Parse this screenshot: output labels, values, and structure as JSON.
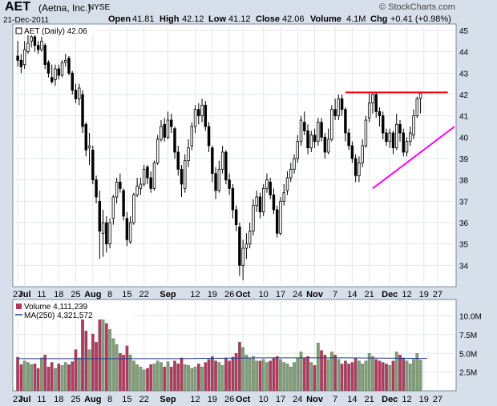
{
  "header": {
    "symbol": "AET",
    "company": "(Aetna, Inc.)",
    "exchange": "NYSE",
    "date": "21-Dec-2011",
    "open_label": "Open",
    "open": "41.81",
    "high_label": "High",
    "high": "42.12",
    "low_label": "Low",
    "low": "41.12",
    "close_label": "Close",
    "close": "42.06",
    "volume_label": "Volume",
    "volume": "4.1M",
    "chg_label": "Chg",
    "chg": "+0.41 (+0.98%)",
    "brand": "© StockCharts.com"
  },
  "price_panel": {
    "legend": "AET (Daily) 42.06"
  },
  "volume_panel": {
    "legend_volume": "Volume 4,111,239",
    "legend_ma": "MA(250) 4,321,572"
  },
  "colors": {
    "up": "#7f9f76",
    "down": "#b3385e",
    "candle": "#000000",
    "resistance": "#ff0000",
    "support": "#ff00ff",
    "ma": "#1e3c8c",
    "frame": "#d6dfea",
    "plot_bg": "#ffffff"
  },
  "chart_data": {
    "type": "candlestick",
    "symbol": "AET",
    "period": "Daily",
    "ylim": [
      33,
      45.3
    ],
    "yticks": [
      34,
      35,
      36,
      37,
      38,
      39,
      40,
      41,
      42,
      43,
      44,
      45
    ],
    "volume_ylim": [
      0,
      12.2
    ],
    "volume_ticks": [
      "2.5M",
      "5.0M",
      "7.5M",
      "10.0M"
    ],
    "volume_tick_values": [
      2.5,
      5.0,
      7.5,
      10.0
    ],
    "xtick_labels": [
      {
        "i": 0,
        "label": "27"
      },
      {
        "i": 2,
        "label": "Jul"
      },
      {
        "i": 7,
        "label": "11"
      },
      {
        "i": 12,
        "label": "18"
      },
      {
        "i": 17,
        "label": "25"
      },
      {
        "i": 22,
        "label": "Aug"
      },
      {
        "i": 27,
        "label": "8"
      },
      {
        "i": 32,
        "label": "15"
      },
      {
        "i": 37,
        "label": "22"
      },
      {
        "i": 44,
        "label": "Sep"
      },
      {
        "i": 52,
        "label": "12"
      },
      {
        "i": 57,
        "label": "19"
      },
      {
        "i": 62,
        "label": "26"
      },
      {
        "i": 66,
        "label": "Oct"
      },
      {
        "i": 72,
        "label": "10"
      },
      {
        "i": 77,
        "label": "17"
      },
      {
        "i": 82,
        "label": "24"
      },
      {
        "i": 87,
        "label": "Nov"
      },
      {
        "i": 93,
        "label": "7"
      },
      {
        "i": 98,
        "label": "14"
      },
      {
        "i": 103,
        "label": "21"
      },
      {
        "i": 109,
        "label": "Dec"
      },
      {
        "i": 114,
        "label": "12"
      },
      {
        "i": 119,
        "label": "19"
      },
      {
        "i": 123,
        "label": "27"
      }
    ],
    "candles": [
      [
        43.8,
        43.6,
        44.5,
        43.3,
        4.5
      ],
      [
        43.6,
        43.3,
        43.9,
        43.0,
        3.5
      ],
      [
        43.4,
        44.1,
        44.5,
        43.2,
        4.0
      ],
      [
        44.0,
        44.4,
        44.9,
        43.9,
        3.8
      ],
      [
        44.5,
        44.7,
        44.8,
        44.2,
        3.5
      ],
      [
        44.7,
        44.3,
        44.8,
        44.0,
        3.6
      ],
      [
        44.3,
        44.1,
        44.5,
        43.9,
        3.0
      ],
      [
        44.1,
        44.5,
        44.7,
        44.0,
        4.4
      ],
      [
        44.3,
        43.4,
        44.4,
        43.2,
        4.8
      ],
      [
        43.5,
        43.0,
        43.6,
        42.8,
        3.2
      ],
      [
        42.8,
        42.6,
        43.4,
        42.5,
        3.8
      ],
      [
        42.7,
        43.2,
        43.4,
        42.4,
        3.0
      ],
      [
        43.2,
        42.9,
        43.4,
        42.7,
        3.6
      ],
      [
        42.9,
        43.5,
        43.6,
        42.8,
        3.4
      ],
      [
        43.5,
        43.6,
        43.9,
        43.3,
        3.8
      ],
      [
        43.7,
        43.0,
        43.8,
        42.9,
        3.5
      ],
      [
        43.0,
        42.2,
        43.1,
        42.0,
        3.9
      ],
      [
        42.2,
        41.8,
        42.5,
        41.6,
        5.5
      ],
      [
        41.8,
        42.3,
        42.5,
        41.5,
        4.4
      ],
      [
        42.0,
        40.5,
        42.2,
        40.2,
        9.6
      ],
      [
        40.6,
        39.4,
        40.7,
        39.1,
        8.0
      ],
      [
        39.5,
        39.6,
        40.2,
        38.7,
        5.5
      ],
      [
        39.4,
        38.0,
        39.6,
        37.8,
        7.6
      ],
      [
        38.0,
        37.2,
        38.2,
        36.9,
        6.5
      ],
      [
        37.0,
        35.6,
        37.5,
        34.3,
        11.8
      ],
      [
        35.5,
        36.0,
        36.6,
        34.4,
        10.0
      ],
      [
        36.0,
        35.0,
        36.3,
        34.6,
        9.0
      ],
      [
        35.0,
        36.0,
        36.2,
        34.8,
        8.2
      ],
      [
        36.2,
        37.2,
        37.3,
        35.9,
        7.0
      ],
      [
        37.2,
        37.9,
        38.1,
        36.9,
        6.2
      ],
      [
        37.9,
        37.6,
        38.3,
        37.4,
        5.0
      ],
      [
        37.5,
        36.3,
        37.6,
        36.1,
        4.8
      ],
      [
        36.2,
        35.2,
        36.5,
        34.9,
        6.0
      ],
      [
        35.1,
        36.0,
        36.3,
        35.0,
        4.8
      ],
      [
        36.0,
        37.3,
        37.4,
        35.9,
        4.0
      ],
      [
        37.3,
        37.7,
        38.1,
        37.2,
        3.5
      ],
      [
        37.6,
        37.8,
        38.1,
        37.3,
        3.2
      ],
      [
        37.8,
        38.5,
        38.7,
        37.7,
        2.8
      ],
      [
        38.6,
        38.1,
        38.7,
        37.8,
        3.0
      ],
      [
        38.1,
        37.6,
        38.4,
        37.4,
        3.5
      ],
      [
        37.6,
        38.8,
        38.9,
        37.5,
        3.6
      ],
      [
        38.8,
        39.9,
        40.1,
        38.7,
        4.0
      ],
      [
        39.9,
        40.5,
        40.8,
        39.8,
        3.8
      ],
      [
        40.6,
        40.0,
        40.9,
        39.8,
        3.2
      ],
      [
        40.0,
        40.8,
        41.2,
        39.9,
        3.9
      ],
      [
        40.8,
        40.5,
        41.1,
        40.2,
        3.2
      ],
      [
        40.4,
        39.3,
        40.5,
        39.0,
        4.0
      ],
      [
        39.3,
        38.5,
        39.6,
        38.2,
        3.6
      ],
      [
        38.5,
        37.8,
        38.7,
        37.2,
        4.4
      ],
      [
        37.6,
        38.9,
        39.2,
        37.4,
        3.5
      ],
      [
        38.9,
        39.5,
        39.9,
        38.6,
        3.4
      ],
      [
        39.6,
        40.5,
        40.7,
        39.4,
        3.0
      ],
      [
        40.5,
        41.3,
        41.5,
        40.2,
        3.2
      ],
      [
        41.3,
        41.0,
        41.6,
        40.6,
        3.6
      ],
      [
        41.0,
        41.5,
        41.8,
        40.7,
        3.2
      ],
      [
        41.5,
        40.5,
        41.7,
        40.3,
        3.8
      ],
      [
        40.5,
        39.6,
        40.7,
        39.3,
        4.2
      ],
      [
        39.5,
        38.3,
        39.6,
        37.9,
        4.6
      ],
      [
        38.3,
        37.5,
        38.6,
        37.1,
        4.0
      ],
      [
        37.5,
        38.5,
        38.9,
        37.4,
        3.8
      ],
      [
        38.5,
        39.3,
        39.6,
        38.3,
        3.4
      ],
      [
        39.3,
        38.0,
        39.4,
        37.8,
        4.4
      ],
      [
        38.0,
        37.6,
        38.3,
        37.3,
        4.0
      ],
      [
        37.6,
        36.6,
        37.8,
        36.2,
        4.5
      ],
      [
        36.6,
        35.9,
        36.8,
        35.6,
        5.0
      ],
      [
        35.8,
        34.0,
        36.0,
        33.5,
        6.5
      ],
      [
        34.0,
        34.8,
        35.2,
        33.3,
        5.8
      ],
      [
        34.8,
        35.0,
        35.5,
        34.3,
        4.8
      ],
      [
        35.0,
        35.6,
        36.0,
        34.8,
        4.4
      ],
      [
        35.6,
        36.8,
        37.1,
        35.4,
        4.6
      ],
      [
        36.8,
        37.2,
        37.5,
        36.5,
        4.0
      ],
      [
        37.2,
        36.5,
        37.4,
        36.2,
        4.0
      ],
      [
        36.5,
        37.6,
        37.8,
        36.3,
        4.2
      ],
      [
        37.6,
        38.0,
        38.3,
        37.4,
        3.8
      ],
      [
        37.9,
        37.3,
        38.1,
        37.1,
        4.0
      ],
      [
        37.3,
        36.6,
        37.6,
        36.4,
        4.4
      ],
      [
        36.6,
        35.5,
        36.8,
        35.3,
        4.6
      ],
      [
        35.5,
        37.0,
        37.2,
        35.4,
        4.2
      ],
      [
        37.0,
        37.4,
        37.8,
        36.8,
        3.8
      ],
      [
        37.5,
        38.1,
        38.4,
        37.3,
        3.6
      ],
      [
        38.1,
        38.5,
        38.8,
        37.9,
        3.2
      ],
      [
        38.5,
        39.0,
        39.2,
        38.3,
        3.8
      ],
      [
        39.0,
        39.8,
        40.1,
        38.8,
        4.4
      ],
      [
        39.8,
        40.8,
        41.0,
        39.6,
        5.2
      ],
      [
        40.7,
        40.3,
        41.2,
        40.1,
        4.4
      ],
      [
        40.3,
        39.5,
        40.6,
        39.2,
        4.6
      ],
      [
        39.5,
        40.1,
        40.3,
        39.3,
        3.8
      ],
      [
        40.1,
        39.8,
        40.4,
        39.5,
        3.4
      ],
      [
        39.8,
        40.7,
        40.9,
        39.6,
        6.4
      ],
      [
        40.7,
        40.0,
        40.9,
        39.8,
        5.4
      ],
      [
        40.0,
        39.3,
        40.2,
        39.0,
        4.8
      ],
      [
        39.3,
        39.9,
        40.4,
        39.2,
        4.2
      ],
      [
        39.9,
        41.3,
        41.5,
        39.8,
        5.2
      ],
      [
        41.3,
        41.0,
        41.8,
        40.8,
        4.8
      ],
      [
        41.0,
        41.8,
        42.0,
        40.8,
        4.2
      ],
      [
        41.8,
        41.3,
        42.0,
        41.0,
        3.6
      ],
      [
        41.3,
        40.2,
        41.4,
        39.8,
        4.0
      ],
      [
        40.2,
        39.6,
        40.4,
        39.4,
        3.6
      ],
      [
        39.6,
        39.0,
        39.8,
        38.8,
        3.8
      ],
      [
        39.0,
        38.2,
        39.2,
        37.9,
        4.4
      ],
      [
        38.2,
        38.8,
        39.1,
        37.9,
        4.0
      ],
      [
        38.8,
        39.6,
        39.9,
        38.6,
        3.6
      ],
      [
        39.6,
        40.8,
        41.0,
        39.5,
        4.0
      ],
      [
        40.9,
        41.6,
        42.1,
        40.7,
        5.0
      ],
      [
        41.6,
        42.0,
        42.1,
        41.1,
        4.6
      ],
      [
        42.0,
        41.2,
        42.1,
        40.9,
        4.2
      ],
      [
        41.2,
        41.0,
        41.4,
        40.5,
        4.0
      ],
      [
        41.0,
        40.2,
        41.2,
        39.9,
        3.8
      ],
      [
        40.2,
        39.8,
        40.4,
        39.6,
        3.6
      ],
      [
        39.8,
        40.2,
        40.4,
        39.5,
        3.4
      ],
      [
        40.2,
        39.5,
        40.3,
        39.2,
        4.0
      ],
      [
        39.5,
        40.6,
        41.1,
        39.4,
        5.2
      ],
      [
        40.6,
        40.2,
        40.8,
        39.8,
        4.8
      ],
      [
        40.2,
        39.3,
        40.4,
        39.1,
        4.4
      ],
      [
        39.3,
        39.8,
        40.0,
        39.1,
        4.0
      ],
      [
        39.8,
        40.2,
        40.5,
        39.6,
        3.6
      ],
      [
        40.1,
        41.0,
        41.3,
        39.9,
        4.2
      ],
      [
        41.0,
        41.8,
        41.9,
        40.9,
        5.0
      ],
      [
        41.81,
        42.06,
        42.12,
        41.12,
        4.111239
      ]
    ],
    "ma250": [
      [
        0,
        4.3
      ],
      [
        24,
        4.3
      ],
      [
        48,
        4.3
      ],
      [
        72,
        4.4
      ],
      [
        96,
        4.4
      ],
      [
        120,
        4.32
      ]
    ],
    "trendlines": [
      {
        "name": "resistance",
        "from": {
          "i": 96,
          "y": 42.1
        },
        "to": {
          "i": 126,
          "y": 42.1
        }
      },
      {
        "name": "support",
        "from": {
          "i": 104,
          "y": 37.6
        },
        "to": {
          "i": 128,
          "y": 40.5
        }
      }
    ]
  }
}
